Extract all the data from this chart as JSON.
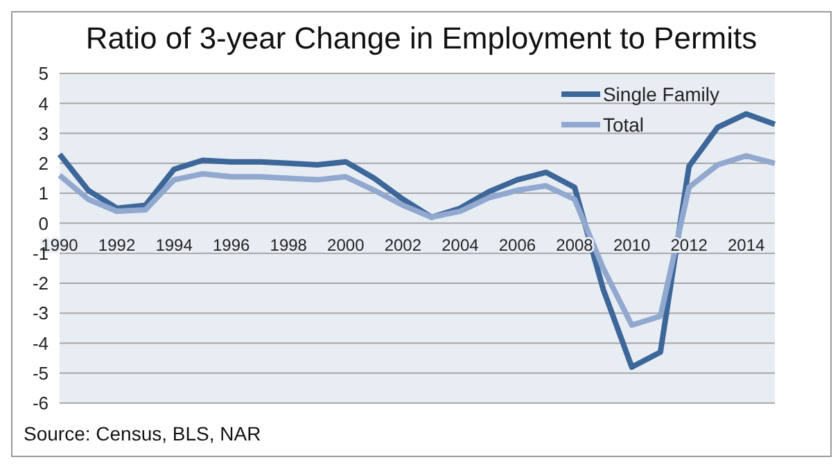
{
  "chart_data": {
    "type": "line",
    "title": "Ratio of 3-year Change in Employment to Permits",
    "categories": [
      "1990",
      null,
      "1992",
      null,
      "1994",
      null,
      "1996",
      null,
      "1998",
      null,
      "2000",
      null,
      "2002",
      null,
      "2004",
      null,
      "2006",
      null,
      "2008",
      null,
      "2010",
      null,
      "2012",
      null,
      "2014",
      null
    ],
    "series": [
      {
        "name": "Single Family",
        "color": "#3d6699",
        "values": [
          2.3,
          1.1,
          0.5,
          0.6,
          1.8,
          2.1,
          2.05,
          2.05,
          2.0,
          1.95,
          2.05,
          1.5,
          0.8,
          0.2,
          0.5,
          1.05,
          1.45,
          1.7,
          1.2,
          -2.2,
          -4.8,
          -4.3,
          1.9,
          3.2,
          3.65,
          3.3
        ]
      },
      {
        "name": "Total",
        "color": "#91a8cf",
        "values": [
          1.6,
          0.8,
          0.4,
          0.45,
          1.45,
          1.65,
          1.55,
          1.55,
          1.5,
          1.45,
          1.55,
          1.1,
          0.6,
          0.2,
          0.4,
          0.85,
          1.1,
          1.25,
          0.8,
          -1.5,
          -3.4,
          -3.1,
          1.2,
          1.95,
          2.25,
          2.0
        ]
      }
    ],
    "ylim": [
      -6,
      5
    ],
    "yticks": [
      -6,
      -5,
      -4,
      -3,
      -2,
      -1,
      0,
      1,
      2,
      3,
      4,
      5
    ],
    "grid": "y",
    "legend": "top right",
    "marker": "none",
    "line_style": "solid",
    "annotations": [
      "Source: Census, BLS, NAR"
    ]
  }
}
